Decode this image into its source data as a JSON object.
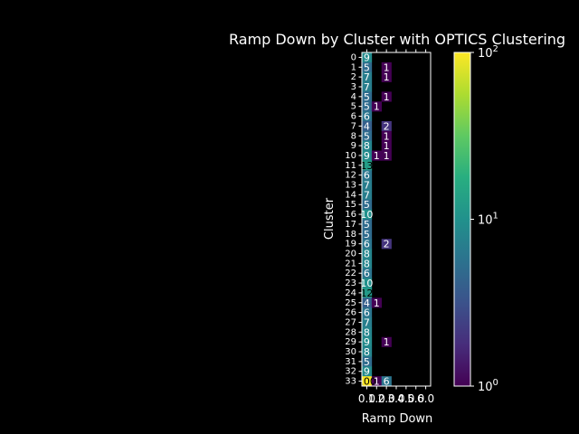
{
  "chart_data": {
    "type": "heatmap",
    "title": "Ramp Down by Cluster with OPTICS Clustering",
    "xlabel": "Ramp Down",
    "ylabel": "Cluster",
    "x_tick_labels": [
      "0.0",
      "1.0",
      "2.0",
      "3.0",
      "4.0",
      "5.0",
      "6.0"
    ],
    "y_tick_labels": [
      "0",
      "1",
      "2",
      "3",
      "4",
      "5",
      "6",
      "7",
      "8",
      "9",
      "10",
      "11",
      "12",
      "13",
      "14",
      "15",
      "16",
      "17",
      "18",
      "19",
      "20",
      "21",
      "22",
      "23",
      "24",
      "25",
      "26",
      "27",
      "28",
      "29",
      "30",
      "31",
      "32",
      "33"
    ],
    "colorbar": {
      "scale": "log",
      "min": 1,
      "max": 100,
      "tick_labels": [
        "10^0",
        "10^1",
        "10^2"
      ],
      "colormap": "viridis"
    },
    "values": [
      [
        9,
        null,
        null,
        null,
        null,
        null,
        null
      ],
      [
        5,
        null,
        1,
        null,
        null,
        null,
        null
      ],
      [
        7,
        null,
        1,
        null,
        null,
        null,
        null
      ],
      [
        7,
        null,
        null,
        null,
        null,
        null,
        null
      ],
      [
        5,
        null,
        1,
        null,
        null,
        null,
        null
      ],
      [
        5,
        1,
        null,
        null,
        null,
        null,
        null
      ],
      [
        6,
        null,
        null,
        null,
        null,
        null,
        null
      ],
      [
        4,
        null,
        2,
        null,
        null,
        null,
        null
      ],
      [
        5,
        null,
        1,
        null,
        null,
        null,
        null
      ],
      [
        8,
        null,
        1,
        null,
        null,
        null,
        null
      ],
      [
        9,
        1,
        1,
        null,
        null,
        null,
        null
      ],
      [
        13,
        null,
        null,
        null,
        null,
        null,
        null
      ],
      [
        6,
        null,
        null,
        null,
        null,
        null,
        null
      ],
      [
        7,
        null,
        null,
        null,
        null,
        null,
        null
      ],
      [
        7,
        null,
        null,
        null,
        null,
        null,
        null
      ],
      [
        5,
        null,
        null,
        null,
        null,
        null,
        null
      ],
      [
        10,
        null,
        null,
        null,
        null,
        null,
        null
      ],
      [
        5,
        null,
        null,
        null,
        null,
        null,
        null
      ],
      [
        5,
        null,
        null,
        null,
        null,
        null,
        null
      ],
      [
        6,
        null,
        2,
        null,
        null,
        null,
        null
      ],
      [
        8,
        null,
        null,
        null,
        null,
        null,
        null
      ],
      [
        8,
        null,
        null,
        null,
        null,
        null,
        null
      ],
      [
        6,
        null,
        null,
        null,
        null,
        null,
        null
      ],
      [
        10,
        null,
        null,
        null,
        null,
        null,
        null
      ],
      [
        12,
        null,
        null,
        null,
        null,
        null,
        null
      ],
      [
        4,
        1,
        null,
        null,
        null,
        null,
        null
      ],
      [
        6,
        null,
        null,
        null,
        null,
        null,
        null
      ],
      [
        7,
        null,
        null,
        null,
        null,
        null,
        null
      ],
      [
        8,
        null,
        null,
        null,
        null,
        null,
        null
      ],
      [
        9,
        null,
        1,
        null,
        null,
        null,
        null
      ],
      [
        8,
        null,
        null,
        null,
        null,
        null,
        null
      ],
      [
        5,
        null,
        null,
        null,
        null,
        null,
        null
      ],
      [
        9,
        null,
        null,
        null,
        null,
        null,
        null
      ],
      [
        100,
        1,
        6,
        null,
        null,
        null,
        null
      ]
    ]
  }
}
